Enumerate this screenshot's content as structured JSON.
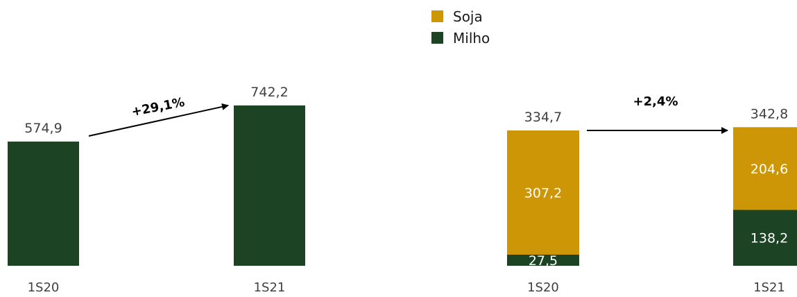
{
  "colors": {
    "milho": "#1c4323",
    "soja": "#cc9606",
    "axis_text": "#404040"
  },
  "legend": {
    "items": [
      {
        "label": "Soja",
        "color": "#cc9606"
      },
      {
        "label": "Milho",
        "color": "#1c4323"
      }
    ]
  },
  "chart_data": [
    {
      "type": "bar",
      "categories": [
        "1S20",
        "1S21"
      ],
      "series": [
        {
          "name": "Milho",
          "values": [
            574.9,
            742.2
          ]
        }
      ],
      "totals": [
        "574,9",
        "742,2"
      ],
      "growth_label": "+29,1%",
      "ylim": [
        0,
        800
      ]
    },
    {
      "type": "bar",
      "stacked": true,
      "categories": [
        "1S20",
        "1S21"
      ],
      "series": [
        {
          "name": "Milho",
          "values": [
            27.5,
            138.2
          ],
          "labels": [
            "27,5",
            "138,2"
          ]
        },
        {
          "name": "Soja",
          "values": [
            307.2,
            204.6
          ],
          "labels": [
            "307,2",
            "204,6"
          ]
        }
      ],
      "totals": [
        "334,7",
        "342,8"
      ],
      "growth_label": "+2,4%",
      "ylim": [
        0,
        360
      ]
    }
  ]
}
